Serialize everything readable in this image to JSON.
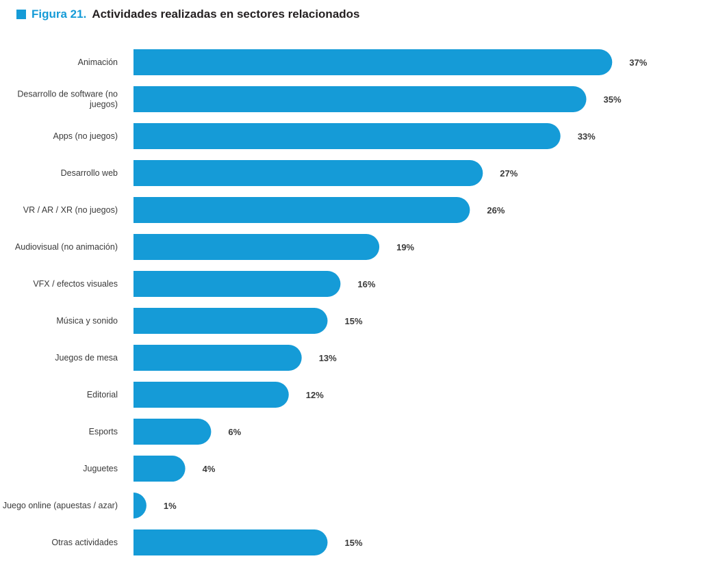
{
  "header": {
    "figure_label": "Figura 21.",
    "title": "Actividades realizadas en sectores relacionados"
  },
  "colors": {
    "bar": "#159bd7",
    "accent": "#159bd7",
    "text": "#3a3a3a"
  },
  "chart_data": {
    "type": "bar",
    "orientation": "horizontal",
    "categories": [
      [
        "Animación"
      ],
      [
        "Desarrollo de software (no",
        "juegos)"
      ],
      [
        "Apps (no juegos)"
      ],
      [
        "Desarrollo web"
      ],
      [
        "VR / AR / XR (no juegos)"
      ],
      [
        "Audiovisual (no animación)"
      ],
      [
        "VFX / efectos visuales"
      ],
      [
        "Música y sonido"
      ],
      [
        "Juegos de mesa"
      ],
      [
        "Editorial"
      ],
      [
        "Esports"
      ],
      [
        "Juguetes"
      ],
      [
        "Juego online (apuestas / azar)"
      ],
      [
        "Otras actividades"
      ]
    ],
    "values": [
      37,
      35,
      33,
      27,
      26,
      19,
      16,
      15,
      13,
      12,
      6,
      4,
      1,
      15
    ],
    "value_labels": [
      "37%",
      "35%",
      "33%",
      "27%",
      "26%",
      "19%",
      "16%",
      "15%",
      "13%",
      "12%",
      "6%",
      "4%",
      "1%",
      "15%"
    ],
    "grid": false,
    "legend": "none"
  }
}
